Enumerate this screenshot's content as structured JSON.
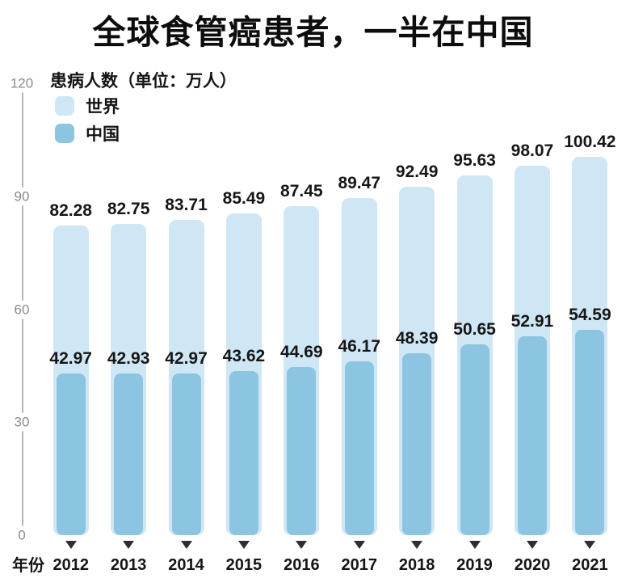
{
  "title": "全球食管癌患者，一半在中国",
  "colors": {
    "world_bar": "#cfe7f4",
    "china_bar": "#8cc5e2",
    "value_label": "#161616",
    "axis_tick": "#8a8a8a",
    "axis_line": "#b5b5b5",
    "marker": "#2e2e2e"
  },
  "chart_data": {
    "type": "bar",
    "title": "全球食管癌患者，一半在中国",
    "ylabel": "患病人数（单位：万人）",
    "xlabel": "年份",
    "categories": [
      "2012",
      "2013",
      "2014",
      "2015",
      "2016",
      "2017",
      "2018",
      "2019",
      "2020",
      "2021"
    ],
    "series": [
      {
        "name": "世界",
        "color": "#cfe7f4",
        "values": [
          82.28,
          82.75,
          83.71,
          85.49,
          87.45,
          89.47,
          92.49,
          95.63,
          98.07,
          100.42
        ]
      },
      {
        "name": "中国",
        "color": "#8cc5e2",
        "values": [
          42.97,
          42.93,
          42.97,
          43.62,
          44.69,
          46.17,
          48.39,
          50.65,
          52.91,
          54.59
        ]
      }
    ],
    "ylim": [
      0,
      120
    ],
    "yticks": [
      0,
      30,
      60,
      90,
      120
    ],
    "grid": false,
    "legend_position": "top-left",
    "x_tick_marker": "▼"
  }
}
